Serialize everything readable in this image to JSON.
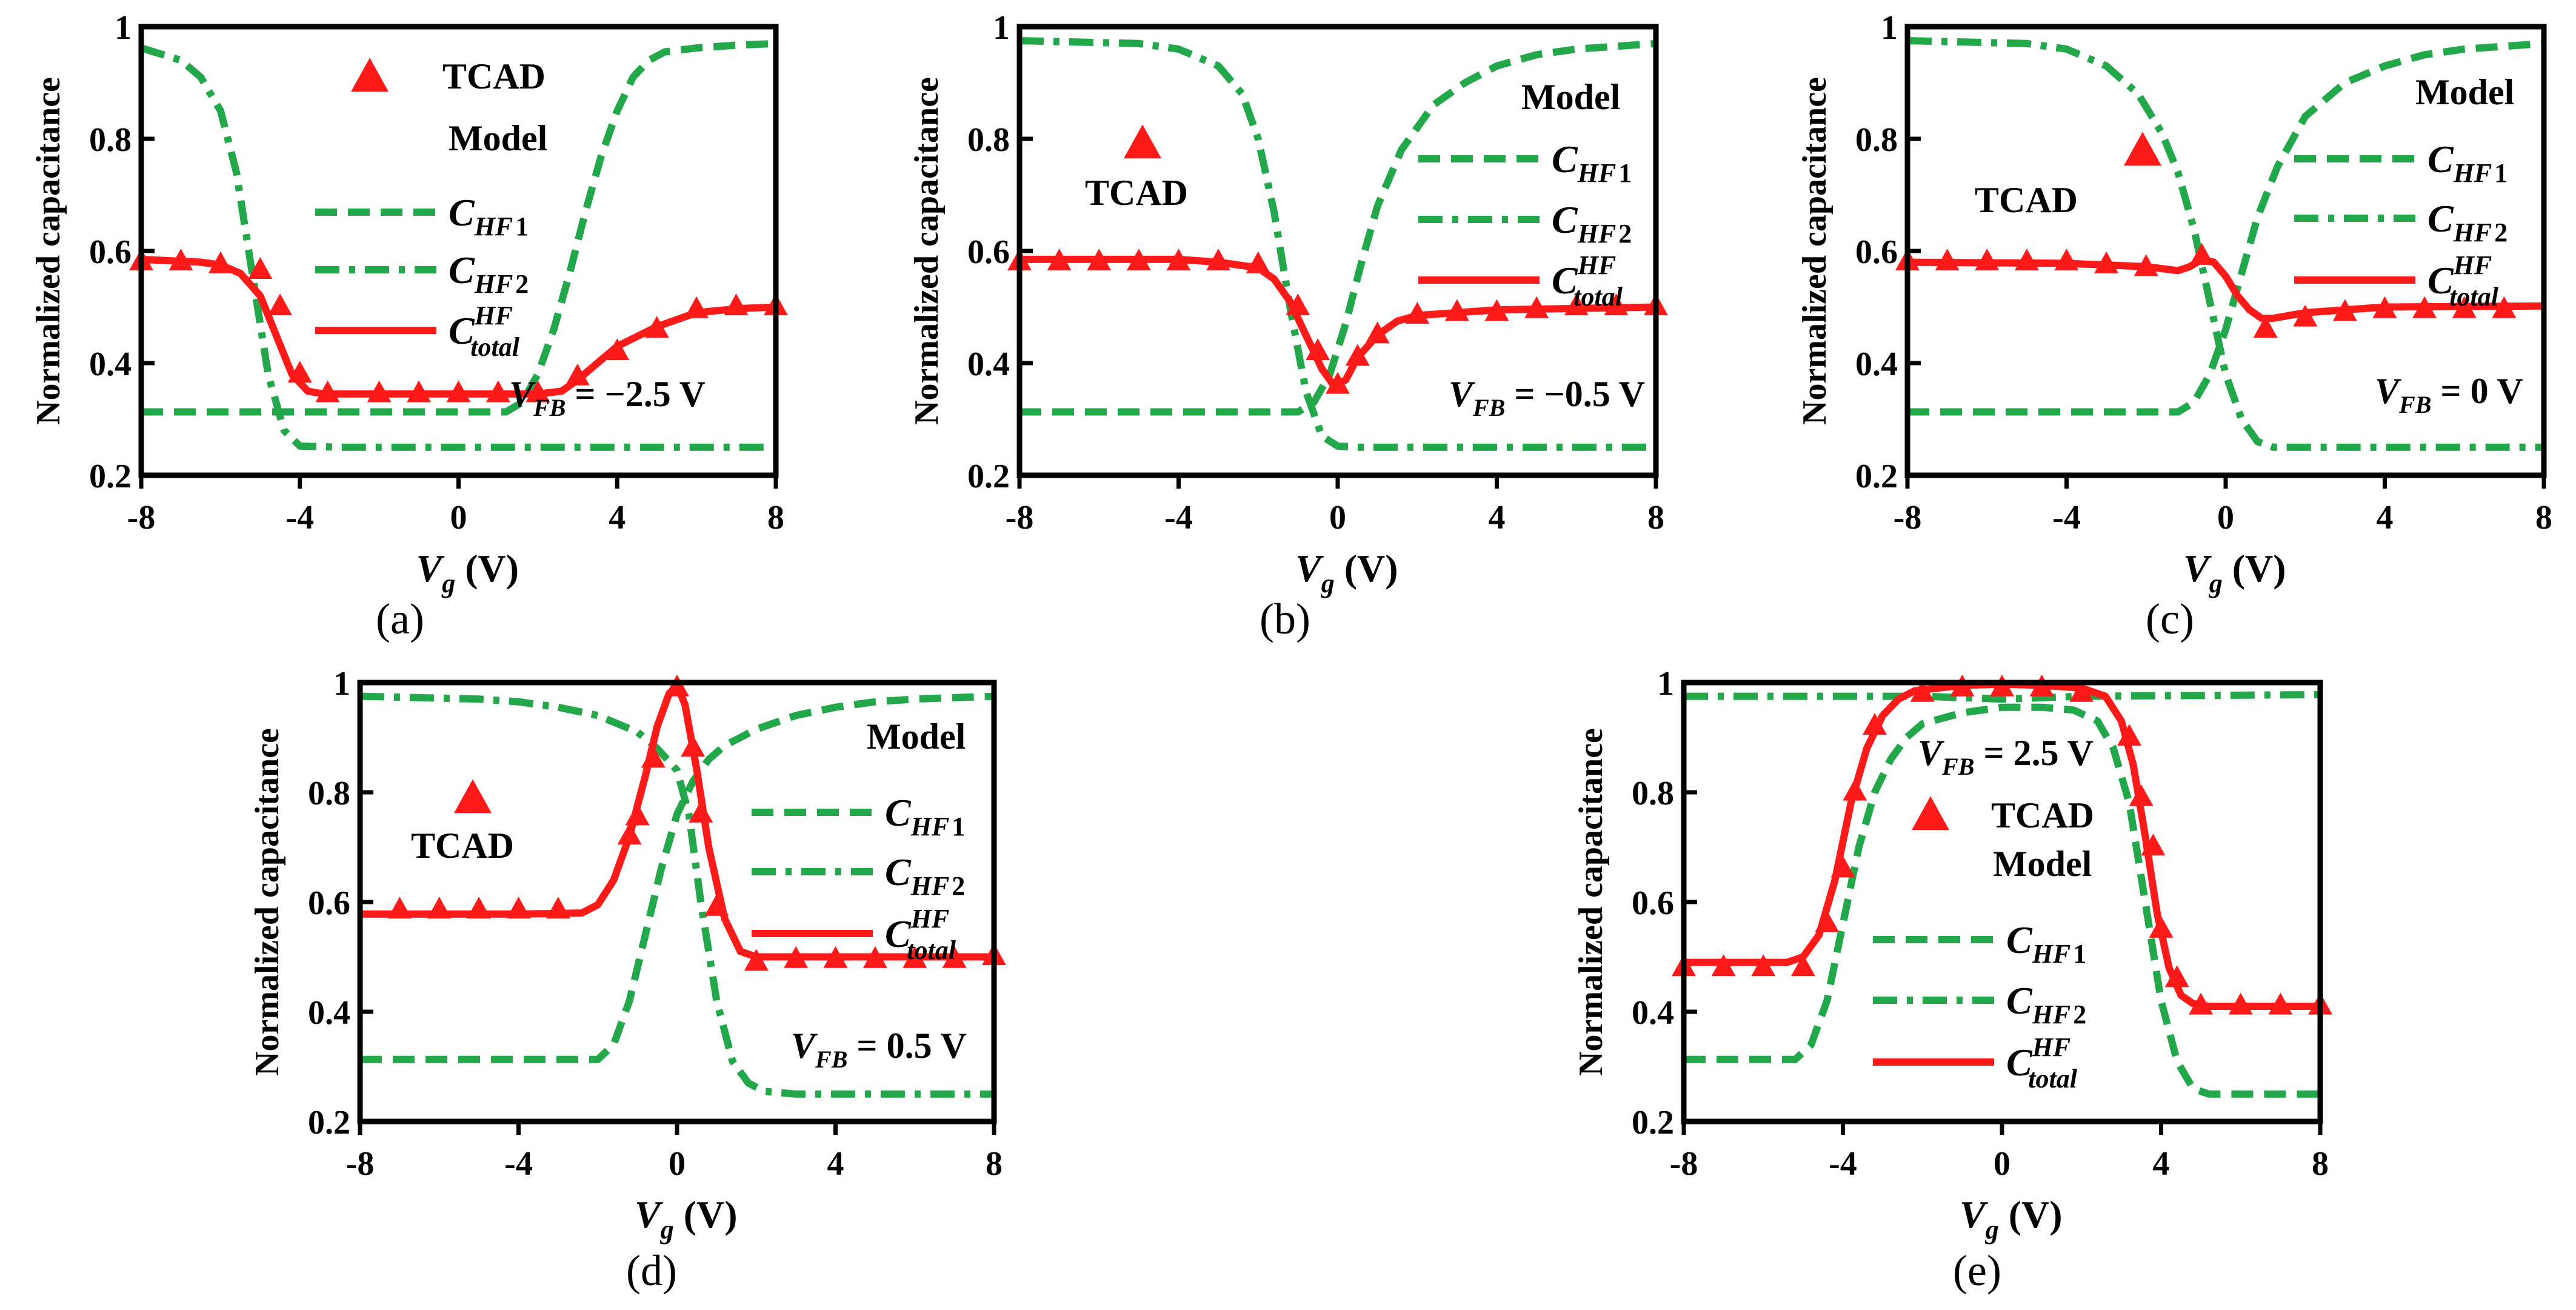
{
  "chart_data": [
    {
      "id": "a",
      "type": "line",
      "sub_label": "(a)",
      "xlabel": "V_g (V)",
      "ylabel": "Normalized capacitance",
      "xlim": [
        -8,
        8
      ],
      "ylim": [
        0.2,
        1.0
      ],
      "xticks": [
        -8,
        -4,
        0,
        4,
        8
      ],
      "yticks": [
        0.2,
        0.4,
        0.6,
        0.8,
        1.0
      ],
      "tick_labels_x": [
        "-8",
        "-4",
        "0",
        "4",
        "8"
      ],
      "tick_labels_y": [
        "0.2",
        "0.4",
        "0.6",
        "0.8",
        "1"
      ],
      "annotation": {
        "label": "V_FB = −2.5 V",
        "prefix": "V",
        "sub": "FB",
        "text": " = −2.5 V"
      },
      "legend": {
        "layout": "left-top",
        "entries": [
          "TCAD",
          "Model",
          "C_HF1",
          "C_HF2",
          "C_total^HF"
        ]
      },
      "series": [
        {
          "name": "C_HF1",
          "style": "dashed",
          "color": "#22a84a",
          "x": [
            -8,
            1.2,
            1.6,
            2,
            2.4,
            2.8,
            3.2,
            3.6,
            4,
            4.4,
            4.8,
            5.2,
            6,
            7,
            8
          ],
          "y": [
            0.313,
            0.313,
            0.33,
            0.38,
            0.46,
            0.56,
            0.67,
            0.77,
            0.85,
            0.91,
            0.94,
            0.955,
            0.962,
            0.967,
            0.97
          ]
        },
        {
          "name": "C_HF2",
          "style": "dashdot",
          "color": "#22a84a",
          "x": [
            -8,
            -7,
            -6.5,
            -6,
            -5.6,
            -5.2,
            -4.8,
            -4.4,
            -4,
            -3,
            8
          ],
          "y": [
            0.962,
            0.94,
            0.91,
            0.85,
            0.74,
            0.56,
            0.38,
            0.28,
            0.252,
            0.25,
            0.25
          ]
        },
        {
          "name": "C_total^HF",
          "style": "solid",
          "color": "#ff1a1a",
          "x": [
            -8,
            -6.5,
            -6,
            -5.5,
            -5,
            -4.6,
            -4.2,
            -3.8,
            -3.4,
            -2,
            0,
            2,
            2.6,
            3,
            3.5,
            4,
            5,
            6,
            7,
            8
          ],
          "y": [
            0.585,
            0.58,
            0.575,
            0.56,
            0.52,
            0.45,
            0.38,
            0.35,
            0.345,
            0.345,
            0.345,
            0.345,
            0.35,
            0.37,
            0.4,
            0.43,
            0.465,
            0.49,
            0.497,
            0.5
          ]
        },
        {
          "name": "TCAD",
          "style": "markers",
          "marker": "triangle",
          "color": "#ff1a1a",
          "x": [
            -8,
            -7,
            -6,
            -5,
            -4.5,
            -4,
            -3.3,
            -2,
            -1,
            0,
            1,
            2,
            3,
            4,
            5,
            6,
            7,
            8
          ],
          "y": [
            0.58,
            0.58,
            0.575,
            0.565,
            0.5,
            0.38,
            0.345,
            0.345,
            0.345,
            0.345,
            0.345,
            0.345,
            0.375,
            0.42,
            0.46,
            0.495,
            0.5,
            0.5
          ]
        }
      ]
    },
    {
      "id": "b",
      "type": "line",
      "sub_label": "(b)",
      "xlabel": "V_g (V)",
      "ylabel": "Normalized capacitance",
      "xlim": [
        -8,
        8
      ],
      "ylim": [
        0.2,
        1.0
      ],
      "xticks": [
        -8,
        -4,
        0,
        4,
        8
      ],
      "yticks": [
        0.2,
        0.4,
        0.6,
        0.8,
        1.0
      ],
      "tick_labels_x": [
        "-8",
        "-4",
        "0",
        "4",
        "8"
      ],
      "tick_labels_y": [
        "0.2",
        "0.4",
        "0.6",
        "0.8",
        "1"
      ],
      "annotation": {
        "label": "V_FB = −0.5 V",
        "prefix": "V",
        "sub": "FB",
        "text": " = −0.5 V"
      },
      "legend": {
        "layout": "right",
        "entries": [
          "TCAD",
          "Model",
          "C_HF1",
          "C_HF2",
          "C_total^HF"
        ]
      },
      "series": [
        {
          "name": "C_HF1",
          "style": "dashed",
          "color": "#22a84a",
          "x": [
            -8,
            -1,
            -0.6,
            -0.2,
            0.2,
            0.6,
            1,
            1.6,
            2.4,
            3.2,
            4,
            5,
            6,
            8
          ],
          "y": [
            0.313,
            0.313,
            0.33,
            0.38,
            0.47,
            0.58,
            0.68,
            0.78,
            0.86,
            0.9,
            0.93,
            0.95,
            0.96,
            0.97
          ]
        },
        {
          "name": "C_HF2",
          "style": "dashdot",
          "color": "#22a84a",
          "x": [
            -8,
            -5,
            -4,
            -3,
            -2.4,
            -2,
            -1.6,
            -1.2,
            -0.8,
            -0.4,
            0,
            0.5,
            8
          ],
          "y": [
            0.975,
            0.97,
            0.96,
            0.93,
            0.88,
            0.8,
            0.67,
            0.5,
            0.35,
            0.27,
            0.252,
            0.25,
            0.25
          ]
        },
        {
          "name": "C_total^HF",
          "style": "solid",
          "color": "#ff1a1a",
          "x": [
            -8,
            -4,
            -3,
            -2,
            -1.6,
            -1.2,
            -0.8,
            -0.4,
            -0.1,
            0.2,
            0.5,
            1,
            1.5,
            2,
            3,
            4,
            8
          ],
          "y": [
            0.585,
            0.585,
            0.58,
            0.57,
            0.55,
            0.51,
            0.45,
            0.39,
            0.36,
            0.37,
            0.41,
            0.45,
            0.475,
            0.485,
            0.49,
            0.495,
            0.5
          ]
        },
        {
          "name": "TCAD",
          "style": "markers",
          "marker": "triangle",
          "color": "#ff1a1a",
          "x": [
            -8,
            -7,
            -6,
            -5,
            -4,
            -3,
            -2,
            -1,
            -0.5,
            0,
            0.5,
            1,
            2,
            3,
            4,
            5,
            6,
            7,
            8
          ],
          "y": [
            0.58,
            0.58,
            0.58,
            0.58,
            0.58,
            0.58,
            0.575,
            0.5,
            0.42,
            0.36,
            0.41,
            0.45,
            0.485,
            0.49,
            0.49,
            0.495,
            0.5,
            0.5,
            0.5
          ]
        }
      ]
    },
    {
      "id": "c",
      "type": "line",
      "sub_label": "(c)",
      "xlabel": "V_g (V)",
      "ylabel": "Normalized capacitance",
      "xlim": [
        -8,
        8
      ],
      "ylim": [
        0.2,
        1.0
      ],
      "xticks": [
        -8,
        -4,
        0,
        4,
        8
      ],
      "yticks": [
        0.2,
        0.4,
        0.6,
        0.8,
        1.0
      ],
      "tick_labels_x": [
        "-8",
        "-4",
        "0",
        "4",
        "8"
      ],
      "tick_labels_y": [
        "0.2",
        "0.4",
        "0.6",
        "0.8",
        "1"
      ],
      "annotation": {
        "label": "V_FB = 0 V",
        "prefix": "V",
        "sub": "FB",
        "text": " = 0 V"
      },
      "legend": {
        "layout": "right",
        "entries": [
          "TCAD",
          "Model",
          "C_HF1",
          "C_HF2",
          "C_total^HF"
        ]
      },
      "series": [
        {
          "name": "C_HF1",
          "style": "dashed",
          "color": "#22a84a",
          "x": [
            -8,
            -1.2,
            -0.8,
            -0.4,
            0,
            0.4,
            0.8,
            1.3,
            2,
            3,
            4,
            5,
            6,
            8
          ],
          "y": [
            0.313,
            0.313,
            0.33,
            0.38,
            0.46,
            0.56,
            0.66,
            0.75,
            0.84,
            0.9,
            0.93,
            0.95,
            0.96,
            0.97
          ]
        },
        {
          "name": "C_HF2",
          "style": "dashdot",
          "color": "#22a84a",
          "x": [
            -8,
            -5,
            -4,
            -3,
            -2.2,
            -1.6,
            -1.2,
            -0.8,
            -0.4,
            0,
            0.4,
            0.8,
            1.2,
            8
          ],
          "y": [
            0.975,
            0.97,
            0.96,
            0.93,
            0.88,
            0.81,
            0.74,
            0.64,
            0.51,
            0.38,
            0.3,
            0.26,
            0.25,
            0.25
          ]
        },
        {
          "name": "C_total^HF",
          "style": "solid",
          "color": "#ff1a1a",
          "x": [
            -8,
            -4,
            -2,
            -1.2,
            -0.9,
            -0.6,
            -0.3,
            0,
            0.3,
            0.6,
            0.9,
            1.2,
            2,
            3,
            4,
            8
          ],
          "y": [
            0.58,
            0.578,
            0.572,
            0.565,
            0.572,
            0.585,
            0.58,
            0.555,
            0.52,
            0.495,
            0.48,
            0.48,
            0.49,
            0.495,
            0.5,
            0.502
          ]
        },
        {
          "name": "TCAD",
          "style": "markers",
          "marker": "triangle",
          "color": "#ff1a1a",
          "x": [
            -8,
            -7,
            -6,
            -5,
            -4,
            -3,
            -2,
            -0.6,
            1,
            2,
            3,
            4,
            5,
            6,
            7
          ],
          "y": [
            0.58,
            0.58,
            0.58,
            0.58,
            0.58,
            0.575,
            0.57,
            0.59,
            0.46,
            0.48,
            0.49,
            0.495,
            0.495,
            0.495,
            0.495
          ]
        }
      ]
    },
    {
      "id": "d",
      "type": "line",
      "sub_label": "(d)",
      "xlabel": "V_g (V)",
      "ylabel": "Normalized capacitance",
      "xlim": [
        -8,
        8
      ],
      "ylim": [
        0.2,
        1.0
      ],
      "xticks": [
        -8,
        -4,
        0,
        4,
        8
      ],
      "yticks": [
        0.2,
        0.4,
        0.6,
        0.8,
        1.0
      ],
      "tick_labels_x": [
        "-8",
        "-4",
        "0",
        "4",
        "8"
      ],
      "tick_labels_y": [
        "0.2",
        "0.4",
        "0.6",
        "0.8",
        "1"
      ],
      "annotation": {
        "label": "V_FB = 0.5 V",
        "prefix": "V",
        "sub": "FB",
        "text": " = 0.5 V"
      },
      "legend": {
        "layout": "right",
        "entries": [
          "TCAD",
          "Model",
          "C_HF1",
          "C_HF2",
          "C_total^HF"
        ]
      },
      "series": [
        {
          "name": "C_HF1",
          "style": "dashed",
          "color": "#22a84a",
          "x": [
            -8,
            -2,
            -1.6,
            -1.2,
            -0.8,
            -0.4,
            0,
            0.4,
            0.8,
            1.2,
            2,
            3,
            4,
            5,
            6,
            8
          ],
          "y": [
            0.313,
            0.313,
            0.34,
            0.42,
            0.54,
            0.66,
            0.76,
            0.82,
            0.86,
            0.885,
            0.915,
            0.94,
            0.955,
            0.965,
            0.97,
            0.975
          ]
        },
        {
          "name": "C_HF2",
          "style": "dashdot",
          "color": "#22a84a",
          "x": [
            -8,
            -5,
            -4,
            -3,
            -2,
            -1,
            -0.5,
            0,
            0.3,
            0.6,
            1,
            1.4,
            1.8,
            2.2,
            3,
            8
          ],
          "y": [
            0.975,
            0.97,
            0.965,
            0.955,
            0.94,
            0.91,
            0.88,
            0.84,
            0.76,
            0.6,
            0.42,
            0.31,
            0.27,
            0.255,
            0.25,
            0.25
          ]
        },
        {
          "name": "C_total^HF",
          "style": "solid",
          "color": "#ff1a1a",
          "x": [
            -8,
            -4,
            -2.4,
            -2,
            -1.6,
            -1.2,
            -0.8,
            -0.5,
            -0.2,
            0,
            0.2,
            0.5,
            0.8,
            1.2,
            1.6,
            2,
            3,
            8
          ],
          "y": [
            0.578,
            0.578,
            0.58,
            0.595,
            0.64,
            0.72,
            0.83,
            0.92,
            0.98,
            0.995,
            0.96,
            0.84,
            0.7,
            0.57,
            0.51,
            0.5,
            0.5,
            0.5
          ]
        },
        {
          "name": "TCAD",
          "style": "markers",
          "marker": "triangle",
          "color": "#ff1a1a",
          "x": [
            -7,
            -6,
            -5,
            -4,
            -3,
            -1.2,
            -1,
            -0.6,
            0,
            0.4,
            0.6,
            1,
            2,
            3,
            4,
            5,
            6,
            7,
            8
          ],
          "y": [
            0.585,
            0.585,
            0.585,
            0.585,
            0.585,
            0.72,
            0.755,
            0.86,
            0.99,
            0.88,
            0.76,
            0.59,
            0.49,
            0.495,
            0.495,
            0.495,
            0.495,
            0.495,
            0.5
          ]
        }
      ]
    },
    {
      "id": "e",
      "type": "line",
      "sub_label": "(e)",
      "xlabel": "V_g (V)",
      "ylabel": "Normalized capacitance",
      "xlim": [
        -8,
        8
      ],
      "ylim": [
        0.2,
        1.0
      ],
      "xticks": [
        -8,
        -4,
        0,
        4,
        8
      ],
      "yticks": [
        0.2,
        0.4,
        0.6,
        0.8,
        1.0
      ],
      "tick_labels_x": [
        "-8",
        "-4",
        "0",
        "4",
        "8"
      ],
      "tick_labels_y": [
        "0.2",
        "0.4",
        "0.6",
        "0.8",
        "1"
      ],
      "annotation": {
        "label": "V_FB = 2.5 V",
        "prefix": "V",
        "sub": "FB",
        "text": " = 2.5 V"
      },
      "legend": {
        "layout": "center",
        "entries": [
          "TCAD",
          "Model",
          "C_HF1",
          "C_HF2",
          "C_total^HF"
        ]
      },
      "series": [
        {
          "name": "C_HF1",
          "style": "dashed",
          "color": "#22a84a",
          "x": [
            -8,
            -5.2,
            -4.8,
            -4.4,
            -4,
            -3.6,
            -3.2,
            -2.8,
            -2.4,
            -2,
            -1,
            0,
            1,
            1.8,
            2.4,
            2.8,
            3.2,
            3.6,
            4,
            4.4,
            4.8,
            5.2,
            6,
            8
          ],
          "y": [
            0.313,
            0.313,
            0.34,
            0.42,
            0.56,
            0.7,
            0.8,
            0.86,
            0.9,
            0.925,
            0.945,
            0.955,
            0.955,
            0.95,
            0.93,
            0.88,
            0.78,
            0.6,
            0.42,
            0.31,
            0.26,
            0.25,
            0.25,
            0.25
          ]
        },
        {
          "name": "C_HF2",
          "style": "dashdot",
          "color": "#22a84a",
          "x": [
            -8,
            -2,
            0,
            2,
            8
          ],
          "y": [
            0.975,
            0.975,
            0.97,
            0.975,
            0.978
          ]
        },
        {
          "name": "C_total^HF",
          "style": "solid",
          "color": "#ff1a1a",
          "x": [
            -8,
            -5.4,
            -5,
            -4.6,
            -4.2,
            -3.8,
            -3.4,
            -3,
            -2.6,
            -2.2,
            -1.6,
            -1,
            0,
            1,
            2,
            2.6,
            3,
            3.3,
            3.6,
            3.9,
            4.2,
            4.5,
            4.8,
            5.2,
            6,
            8
          ],
          "y": [
            0.49,
            0.49,
            0.5,
            0.54,
            0.64,
            0.78,
            0.88,
            0.94,
            0.97,
            0.985,
            0.99,
            0.995,
            0.997,
            0.995,
            0.99,
            0.975,
            0.93,
            0.85,
            0.72,
            0.58,
            0.48,
            0.43,
            0.415,
            0.41,
            0.41,
            0.41
          ]
        },
        {
          "name": "TCAD",
          "style": "markers",
          "marker": "triangle",
          "color": "#ff1a1a",
          "x": [
            -8,
            -7,
            -6,
            -5,
            -4.4,
            -4,
            -3.7,
            -3.2,
            -2,
            -1,
            0,
            1,
            2,
            3.2,
            3.5,
            3.8,
            4,
            4.4,
            5,
            6,
            7,
            8
          ],
          "y": [
            0.48,
            0.48,
            0.48,
            0.48,
            0.56,
            0.66,
            0.8,
            0.92,
            0.98,
            0.99,
            0.99,
            0.99,
            0.98,
            0.9,
            0.79,
            0.7,
            0.55,
            0.46,
            0.41,
            0.41,
            0.41,
            0.41
          ]
        }
      ]
    }
  ]
}
